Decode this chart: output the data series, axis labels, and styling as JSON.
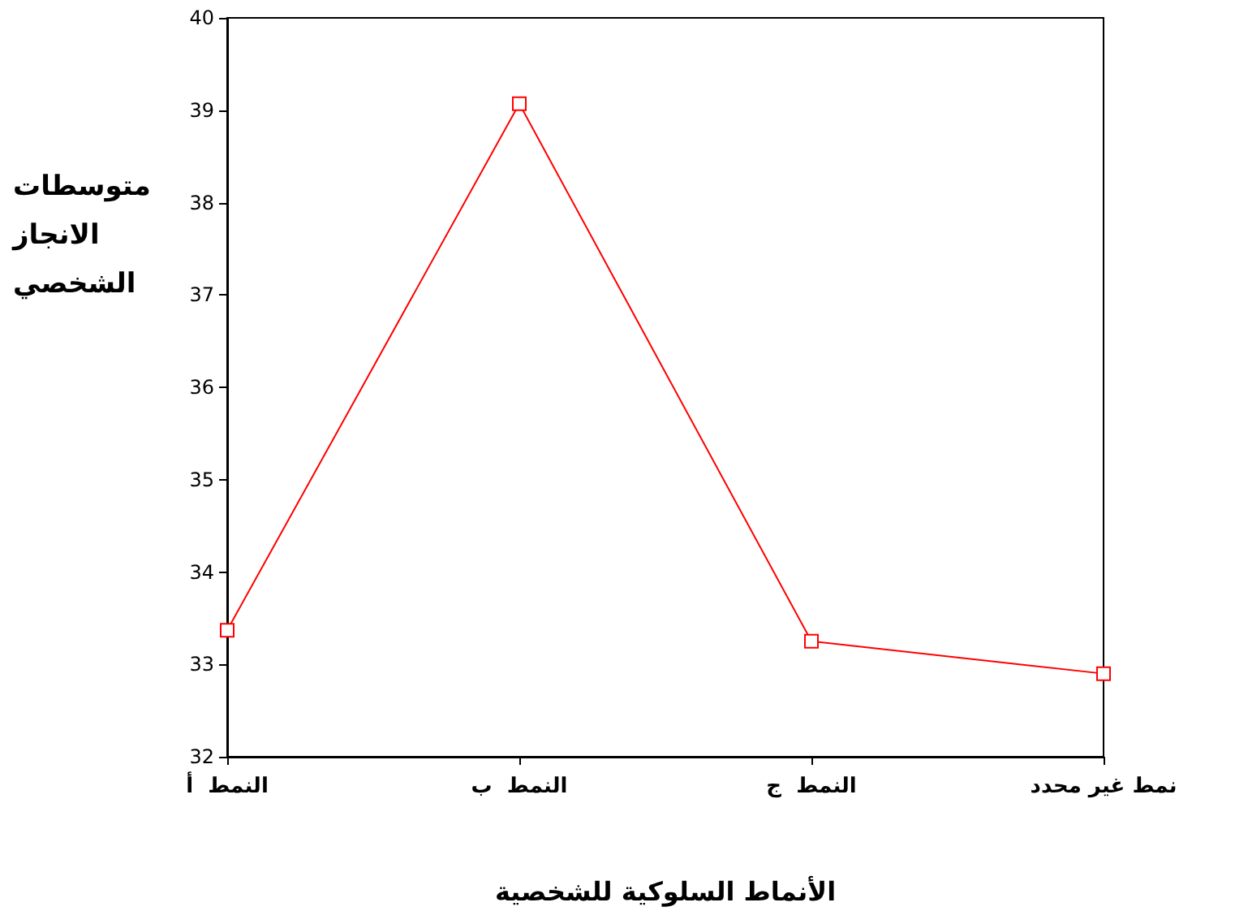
{
  "chart_data": {
    "type": "line",
    "xlabel": "الأنماط السلوكية للشخصية",
    "ylabel": "متوسطات الانجاز الشخصي",
    "categories": [
      "النمط  أ",
      "النمط  ب",
      "النمط  ج",
      "نمط غير محدد"
    ],
    "series": [
      {
        "color": "#ff0000",
        "values": [
          33.37,
          39.07,
          33.25,
          32.9
        ]
      }
    ],
    "ylim": [
      32,
      40
    ],
    "yticks": [
      32,
      33,
      34,
      35,
      36,
      37,
      38,
      39,
      40
    ],
    "marker": "square",
    "line_style": "solid",
    "grid": false
  }
}
